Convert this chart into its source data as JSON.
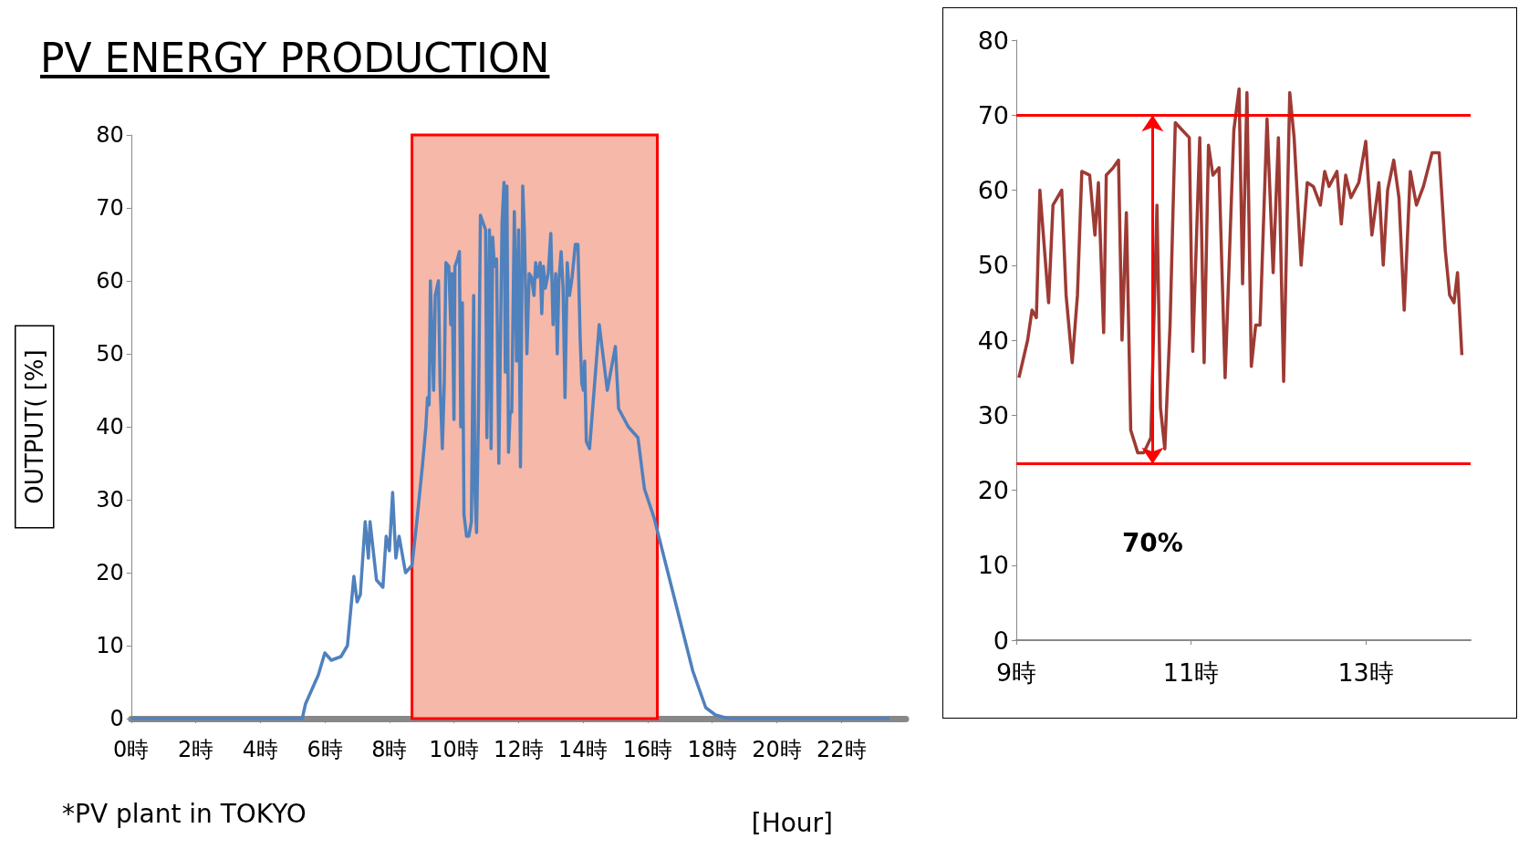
{
  "chart_data": [
    {
      "type": "line",
      "title": "PV ENERGY PRODUCTION",
      "ylabel": "OUTPUT( [%]",
      "xlabel": "[Hour]",
      "annotations": [
        "*PV plant in TOKYO"
      ],
      "x": [
        0,
        5.3,
        5.4,
        5.6,
        5.8,
        6.0,
        6.2,
        6.5,
        6.7,
        6.9,
        7.0,
        7.1,
        7.25,
        7.35,
        7.4,
        7.6,
        7.8,
        7.9,
        8.0,
        8.1,
        8.2,
        8.3,
        8.5,
        8.7,
        8.85,
        9.03,
        9.13,
        9.18,
        9.23,
        9.27,
        9.33,
        9.37,
        9.42,
        9.52,
        9.57,
        9.64,
        9.7,
        9.75,
        9.84,
        9.9,
        9.94,
        10.0,
        10.03,
        10.11,
        10.17,
        10.21,
        10.26,
        10.31,
        10.39,
        10.46,
        10.54,
        10.61,
        10.65,
        10.7,
        10.76,
        10.82,
        10.9,
        10.98,
        11.02,
        11.1,
        11.15,
        11.2,
        11.25,
        11.32,
        11.39,
        11.49,
        11.55,
        11.59,
        11.64,
        11.69,
        11.74,
        11.79,
        11.87,
        11.94,
        12.0,
        12.06,
        12.13,
        12.18,
        12.26,
        12.33,
        12.4,
        12.48,
        12.53,
        12.58,
        12.67,
        12.72,
        12.77,
        12.83,
        12.92,
        13.0,
        13.07,
        13.15,
        13.2,
        13.25,
        13.32,
        13.38,
        13.44,
        13.51,
        13.58,
        13.66,
        13.76,
        13.84,
        13.91,
        13.96,
        14.01,
        14.05,
        14.1,
        14.2,
        14.5,
        14.75,
        15,
        15.1,
        15.4,
        15.7,
        15.9,
        16.2,
        16.6,
        17,
        17.4,
        17.8,
        18.1,
        18.5,
        23.5
      ],
      "series": [
        {
          "color": "#4f81bd",
          "values": [
            0,
            0,
            2,
            4,
            6,
            9,
            8,
            8.5,
            10,
            19.5,
            16,
            17,
            27,
            22,
            27,
            19,
            18,
            25,
            23,
            31,
            22,
            25,
            20,
            21,
            27,
            35,
            40,
            44,
            43,
            60,
            51,
            45,
            58,
            60,
            46,
            37,
            46,
            62.5,
            62,
            54,
            61,
            41,
            62,
            63,
            64,
            40,
            57,
            28,
            25,
            25,
            27,
            58,
            31,
            25.5,
            42,
            69,
            68,
            67,
            38.5,
            67,
            37,
            66,
            62,
            63,
            35,
            68,
            73.5,
            47.5,
            73,
            36.5,
            42,
            42,
            69.5,
            49,
            67,
            34.5,
            73,
            67,
            50,
            61,
            60.5,
            58,
            62.5,
            60.5,
            62.5,
            55.5,
            62,
            59,
            61,
            66.5,
            54,
            61,
            50,
            60,
            64,
            59,
            44,
            62.5,
            58,
            60.5,
            65,
            65,
            52,
            46,
            45,
            49,
            38,
            37,
            54,
            45,
            51,
            42.5,
            40,
            38.5,
            31.5,
            27.5,
            20.5,
            13.5,
            6.5,
            1.5,
            0.5,
            0,
            0
          ]
        }
      ],
      "xlim": [
        0,
        24
      ],
      "xticks": [
        {
          "value": 0,
          "label": "0時"
        },
        {
          "value": 2,
          "label": "2時"
        },
        {
          "value": 4,
          "label": "4時"
        },
        {
          "value": 6,
          "label": "6時"
        },
        {
          "value": 8,
          "label": "8時"
        },
        {
          "value": 10,
          "label": "10時"
        },
        {
          "value": 12,
          "label": "12時"
        },
        {
          "value": 14,
          "label": "14時"
        },
        {
          "value": 16,
          "label": "16時"
        },
        {
          "value": 18,
          "label": "18時"
        },
        {
          "value": 20,
          "label": "20時"
        },
        {
          "value": 22,
          "label": "22時"
        }
      ],
      "ylim": [
        0,
        80
      ],
      "yticks": [
        0,
        10,
        20,
        30,
        40,
        50,
        60,
        70,
        80
      ],
      "bands": [
        {
          "axis": "x",
          "from": 8.7,
          "to": 16.3,
          "color": "#f6b8a8"
        }
      ]
    },
    {
      "type": "line",
      "x": [
        9.03,
        9.13,
        9.18,
        9.23,
        9.27,
        9.33,
        9.37,
        9.42,
        9.52,
        9.57,
        9.64,
        9.7,
        9.75,
        9.84,
        9.9,
        9.94,
        10.0,
        10.03,
        10.11,
        10.17,
        10.21,
        10.26,
        10.31,
        10.39,
        10.46,
        10.54,
        10.61,
        10.65,
        10.7,
        10.76,
        10.82,
        10.9,
        10.98,
        11.02,
        11.1,
        11.15,
        11.2,
        11.25,
        11.32,
        11.39,
        11.49,
        11.55,
        11.59,
        11.64,
        11.69,
        11.74,
        11.79,
        11.87,
        11.94,
        12.0,
        12.06,
        12.13,
        12.18,
        12.26,
        12.33,
        12.4,
        12.48,
        12.53,
        12.58,
        12.67,
        12.72,
        12.77,
        12.83,
        12.92,
        13.0,
        13.07,
        13.15,
        13.2,
        13.25,
        13.32,
        13.38,
        13.44,
        13.51,
        13.58,
        13.66,
        13.76,
        13.84,
        13.91,
        13.96,
        14.01,
        14.05,
        14.1
      ],
      "series": [
        {
          "color": "#9e3a34",
          "values": [
            35,
            40,
            44,
            43,
            60,
            51,
            45,
            58,
            60,
            46,
            37,
            46,
            62.5,
            62,
            54,
            61,
            41,
            62,
            63,
            64,
            40,
            57,
            28,
            25,
            25,
            27,
            58,
            31,
            25.5,
            42,
            69,
            68,
            67,
            38.5,
            67,
            37,
            66,
            62,
            63,
            35,
            68,
            73.5,
            47.5,
            73,
            36.5,
            42,
            42,
            69.5,
            49,
            67,
            34.5,
            73,
            67,
            50,
            61,
            60.5,
            58,
            62.5,
            60.5,
            62.5,
            55.5,
            62,
            59,
            61,
            66.5,
            54,
            61,
            50,
            60,
            64,
            59,
            44,
            62.5,
            58,
            60.5,
            65,
            65,
            52,
            46,
            45,
            49,
            38
          ]
        }
      ],
      "xlim": [
        9,
        14.2
      ],
      "xticks": [
        {
          "value": 9,
          "label": "9時"
        },
        {
          "value": 11,
          "label": "11時"
        },
        {
          "value": 13,
          "label": "13時"
        }
      ],
      "ylim": [
        0,
        80
      ],
      "yticks": [
        0,
        10,
        20,
        30,
        40,
        50,
        60,
        70,
        80
      ],
      "ref_lines": [
        {
          "axis": "y",
          "value": 70,
          "color": "#ff0000"
        },
        {
          "axis": "y",
          "value": 23.5,
          "color": "#ff0000"
        }
      ],
      "annotations": [
        "70%"
      ]
    }
  ]
}
